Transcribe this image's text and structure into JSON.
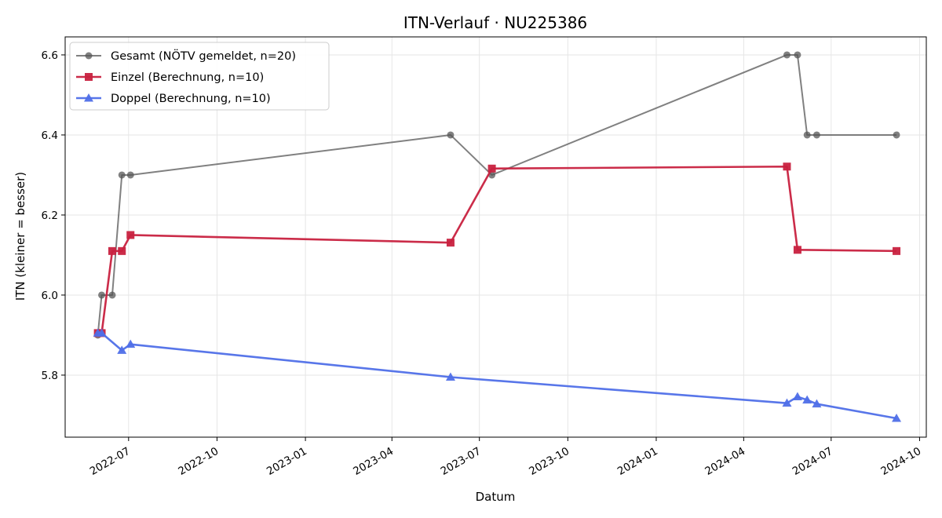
{
  "chart_data": {
    "type": "line",
    "title": "ITN-Verlauf · NU225386",
    "xlabel": "Datum",
    "ylabel": "ITN  (kleiner = besser)",
    "x_axis_type": "date",
    "xlim": [
      "2022-04-26",
      "2024-10-08"
    ],
    "ylim": [
      5.645,
      6.645
    ],
    "grid": true,
    "legend_position": "top-left",
    "x_ticks": [
      "2022-07-01",
      "2022-10-01",
      "2023-01-01",
      "2023-04-01",
      "2023-07-01",
      "2023-10-01",
      "2024-01-01",
      "2024-04-01",
      "2024-07-01",
      "2024-10-01"
    ],
    "x_tick_labels": [
      "2022-07",
      "2022-10",
      "2023-01",
      "2023-04",
      "2023-07",
      "2023-10",
      "2024-01",
      "2024-04",
      "2024-07",
      "2024-10"
    ],
    "y_ticks": [
      5.8,
      6.0,
      6.2,
      6.4,
      6.6
    ],
    "y_tick_labels": [
      "5.8",
      "6.0",
      "6.2",
      "6.4",
      "6.6"
    ],
    "series": [
      {
        "name": "Gesamt (NÖTV gemeldet, n=20)",
        "color": "#555555",
        "marker": "circle",
        "points": [
          {
            "x": "2022-05-30",
            "y": 5.9
          },
          {
            "x": "2022-06-03",
            "y": 6.0
          },
          {
            "x": "2022-06-14",
            "y": 6.0
          },
          {
            "x": "2022-06-24",
            "y": 6.3
          },
          {
            "x": "2022-07-03",
            "y": 6.3
          },
          {
            "x": "2023-06-01",
            "y": 6.4
          },
          {
            "x": "2023-07-14",
            "y": 6.3
          },
          {
            "x": "2024-05-16",
            "y": 6.6
          },
          {
            "x": "2024-05-27",
            "y": 6.6
          },
          {
            "x": "2024-06-06",
            "y": 6.4
          },
          {
            "x": "2024-06-16",
            "y": 6.4
          },
          {
            "x": "2024-09-07",
            "y": 6.4
          }
        ]
      },
      {
        "name": "Einzel (Berechnung, n=10)",
        "color": "#c8213f",
        "marker": "square",
        "points": [
          {
            "x": "2022-05-30",
            "y": 5.905
          },
          {
            "x": "2022-06-03",
            "y": 5.905
          },
          {
            "x": "2022-06-14",
            "y": 6.11
          },
          {
            "x": "2022-06-24",
            "y": 6.11
          },
          {
            "x": "2022-07-03",
            "y": 6.15
          },
          {
            "x": "2023-06-01",
            "y": 6.131
          },
          {
            "x": "2023-07-14",
            "y": 6.316
          },
          {
            "x": "2024-05-16",
            "y": 6.321
          },
          {
            "x": "2024-05-27",
            "y": 6.113
          },
          {
            "x": "2024-09-07",
            "y": 6.11
          }
        ]
      },
      {
        "name": "Doppel (Berechnung, n=10)",
        "color": "#4f6fe8",
        "marker": "triangle",
        "points": [
          {
            "x": "2022-05-30",
            "y": 5.905
          },
          {
            "x": "2022-06-03",
            "y": 5.905
          },
          {
            "x": "2022-06-24",
            "y": 5.862
          },
          {
            "x": "2022-07-03",
            "y": 5.877
          },
          {
            "x": "2023-06-01",
            "y": 5.795
          },
          {
            "x": "2024-05-16",
            "y": 5.73
          },
          {
            "x": "2024-05-27",
            "y": 5.746
          },
          {
            "x": "2024-06-06",
            "y": 5.738
          },
          {
            "x": "2024-06-16",
            "y": 5.728
          },
          {
            "x": "2024-09-07",
            "y": 5.692
          }
        ]
      }
    ]
  }
}
